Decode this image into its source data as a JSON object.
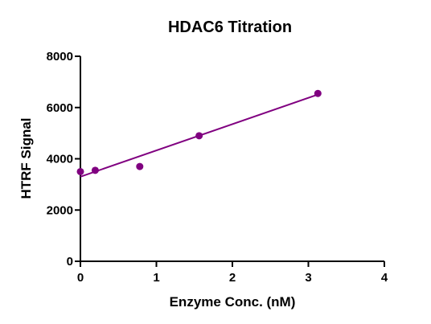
{
  "chart_data": {
    "type": "scatter",
    "title": "HDAC6 Titration",
    "xlabel": "Enzyme Conc. (nM)",
    "ylabel": "HTRF Signal",
    "xlim": [
      0,
      4
    ],
    "ylim": [
      0,
      8000
    ],
    "x_ticks": [
      0,
      1,
      2,
      3,
      4
    ],
    "y_ticks": [
      0,
      2000,
      4000,
      6000,
      8000
    ],
    "x_tick_labels": [
      "0",
      "1",
      "2",
      "3",
      "4"
    ],
    "y_tick_labels": [
      "0",
      "2000",
      "4000",
      "6000",
      "8000"
    ],
    "grid": false,
    "legend": "none",
    "series": [
      {
        "x": [
          0,
          0.195,
          0.781,
          1.5625,
          3.125
        ],
        "y": [
          3500,
          3550,
          3700,
          4900,
          6550
        ],
        "color": "#800080",
        "marker": "circle"
      }
    ],
    "fit_line": {
      "type": "linear",
      "x_range": [
        0,
        3.125
      ],
      "slope": 1026,
      "intercept": 3300,
      "color": "#800080"
    }
  }
}
